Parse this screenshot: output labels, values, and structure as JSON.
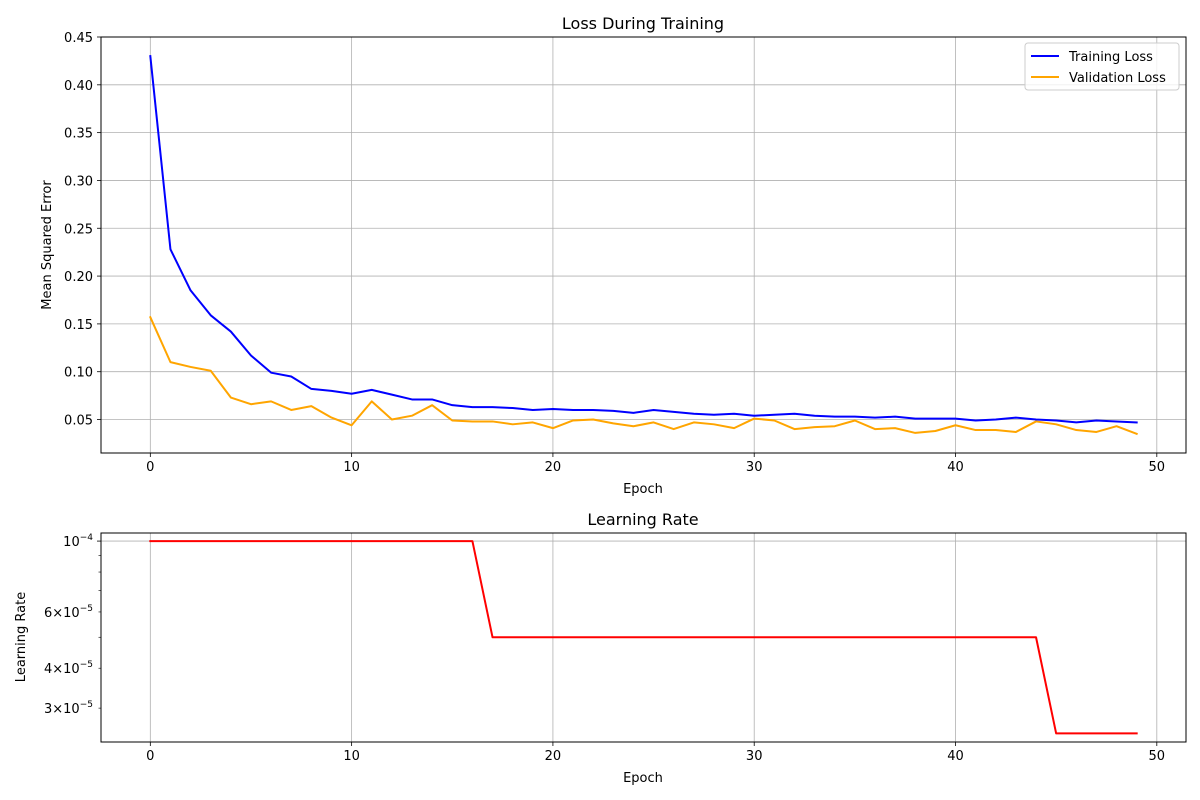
{
  "chart_data": [
    {
      "type": "line",
      "title": "Loss During Training",
      "xlabel": "Epoch",
      "ylabel": "Mean Squared Error",
      "xlim": [
        -2.45,
        51.45
      ],
      "ylim": [
        0.015,
        0.45
      ],
      "xticks": [
        0,
        10,
        20,
        30,
        40,
        50
      ],
      "xtick_labels": [
        "0",
        "10",
        "20",
        "30",
        "40",
        "50"
      ],
      "yticks": [
        0.05,
        0.1,
        0.15,
        0.2,
        0.25,
        0.3,
        0.35,
        0.4,
        0.45
      ],
      "ytick_labels": [
        "0.05",
        "0.10",
        "0.15",
        "0.20",
        "0.25",
        "0.30",
        "0.35",
        "0.40",
        "0.45"
      ],
      "grid": true,
      "legend_position": "top-right",
      "x": [
        0,
        1,
        2,
        3,
        4,
        5,
        6,
        7,
        8,
        9,
        10,
        11,
        12,
        13,
        14,
        15,
        16,
        17,
        18,
        19,
        20,
        21,
        22,
        23,
        24,
        25,
        26,
        27,
        28,
        29,
        30,
        31,
        32,
        33,
        34,
        35,
        36,
        37,
        38,
        39,
        40,
        41,
        42,
        43,
        44,
        45,
        46,
        47,
        48,
        49
      ],
      "series": [
        {
          "name": "Training Loss",
          "color": "#0000ff",
          "values": [
            0.43,
            0.228,
            0.185,
            0.159,
            0.142,
            0.117,
            0.099,
            0.095,
            0.082,
            0.08,
            0.077,
            0.081,
            0.076,
            0.071,
            0.071,
            0.065,
            0.063,
            0.063,
            0.062,
            0.06,
            0.061,
            0.06,
            0.06,
            0.059,
            0.057,
            0.06,
            0.058,
            0.056,
            0.055,
            0.056,
            0.054,
            0.055,
            0.056,
            0.054,
            0.053,
            0.053,
            0.052,
            0.053,
            0.051,
            0.051,
            0.051,
            0.049,
            0.05,
            0.052,
            0.05,
            0.049,
            0.047,
            0.049,
            0.048,
            0.047
          ]
        },
        {
          "name": "Validation Loss",
          "color": "#ffa500",
          "values": [
            0.157,
            0.11,
            0.105,
            0.101,
            0.073,
            0.066,
            0.069,
            0.06,
            0.064,
            0.052,
            0.044,
            0.069,
            0.05,
            0.054,
            0.065,
            0.049,
            0.048,
            0.048,
            0.045,
            0.047,
            0.041,
            0.049,
            0.05,
            0.046,
            0.043,
            0.047,
            0.04,
            0.047,
            0.045,
            0.041,
            0.051,
            0.049,
            0.04,
            0.042,
            0.043,
            0.049,
            0.04,
            0.041,
            0.036,
            0.038,
            0.044,
            0.039,
            0.039,
            0.037,
            0.048,
            0.045,
            0.039,
            0.037,
            0.043,
            0.035
          ]
        }
      ]
    },
    {
      "type": "line",
      "title": "Learning Rate",
      "xlabel": "Epoch",
      "ylabel": "Learning Rate",
      "yscale": "log",
      "xlim": [
        -2.45,
        51.45
      ],
      "ylim": [
        2.35e-05,
        0.000106
      ],
      "xticks": [
        0,
        10,
        20,
        30,
        40,
        50
      ],
      "xtick_labels": [
        "0",
        "10",
        "20",
        "30",
        "40",
        "50"
      ],
      "yticks_major": [
        0.0001
      ],
      "yticks_major_labels": [
        {
          "base": "10",
          "exp": "−4"
        }
      ],
      "yticks_minor": [
        3e-05,
        4e-05,
        5e-05,
        6e-05,
        7e-05,
        8e-05,
        9e-05
      ],
      "yticks_minor_labels": [
        {
          "value": 3e-05,
          "mant": "3",
          "base": "10",
          "exp": "−5"
        },
        {
          "value": 4e-05,
          "mant": "4",
          "base": "10",
          "exp": "−5"
        },
        {
          "value": 6e-05,
          "mant": "6",
          "base": "10",
          "exp": "−5"
        }
      ],
      "grid": true,
      "x": [
        0,
        1,
        2,
        3,
        4,
        5,
        6,
        7,
        8,
        9,
        10,
        11,
        12,
        13,
        14,
        15,
        16,
        17,
        18,
        19,
        20,
        21,
        22,
        23,
        24,
        25,
        26,
        27,
        28,
        29,
        30,
        31,
        32,
        33,
        34,
        35,
        36,
        37,
        38,
        39,
        40,
        41,
        42,
        43,
        44,
        45,
        46,
        47,
        48,
        49
      ],
      "series": [
        {
          "color": "#ff0000",
          "values": [
            0.0001,
            0.0001,
            0.0001,
            0.0001,
            0.0001,
            0.0001,
            0.0001,
            0.0001,
            0.0001,
            0.0001,
            0.0001,
            0.0001,
            0.0001,
            0.0001,
            0.0001,
            0.0001,
            0.0001,
            5e-05,
            5e-05,
            5e-05,
            5e-05,
            5e-05,
            5e-05,
            5e-05,
            5e-05,
            5e-05,
            5e-05,
            5e-05,
            5e-05,
            5e-05,
            5e-05,
            5e-05,
            5e-05,
            5e-05,
            5e-05,
            5e-05,
            5e-05,
            5e-05,
            5e-05,
            5e-05,
            5e-05,
            5e-05,
            5e-05,
            5e-05,
            5e-05,
            2.5e-05,
            2.5e-05,
            2.5e-05,
            2.5e-05,
            2.5e-05
          ]
        }
      ]
    }
  ]
}
